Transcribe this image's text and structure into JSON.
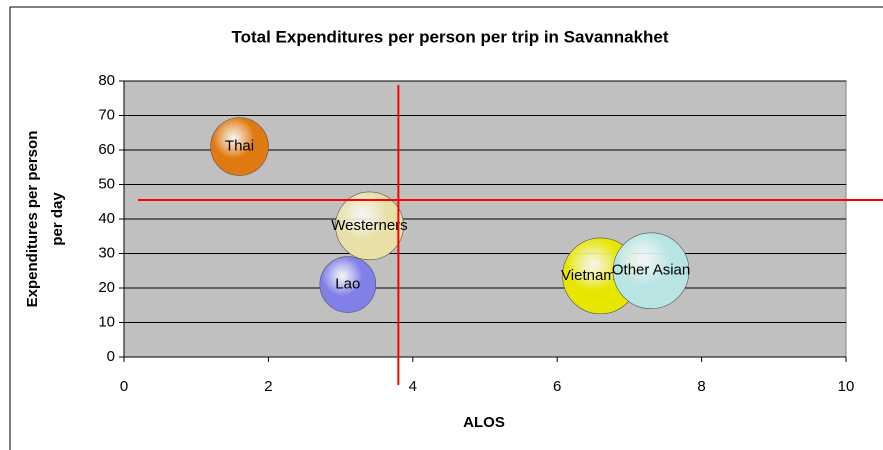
{
  "chart_data": {
    "type": "bubble",
    "title": "Total Expenditures per person per trip in Savannakhet",
    "xlabel": "ALOS",
    "ylabel": [
      "Expenditures per person",
      "per day"
    ],
    "xlim": [
      0,
      10
    ],
    "xticks": [
      0,
      2,
      4,
      6,
      8,
      10
    ],
    "ylim": [
      0,
      80
    ],
    "yticks": [
      0,
      10,
      20,
      30,
      40,
      50,
      60,
      70,
      80
    ],
    "grid": true,
    "series": [
      {
        "name": "Thai",
        "color": "#e07a10",
        "x": [
          1.6
        ],
        "values": [
          61
        ],
        "sizes": [
          93
        ]
      },
      {
        "name": "Westerners",
        "color": "#e8e0a8",
        "x": [
          3.4
        ],
        "values": [
          38
        ],
        "sizes": [
          128
        ]
      },
      {
        "name": "Lao",
        "color": "#8080e8",
        "x": [
          3.1
        ],
        "values": [
          21
        ],
        "sizes": [
          87
        ]
      },
      {
        "name": "Vietnamese",
        "color": "#e6e600",
        "x": [
          6.6
        ],
        "values": [
          23.5
        ],
        "sizes": [
          160
        ]
      },
      {
        "name": "Other Asian",
        "color": "#b8e4e4",
        "x": [
          7.3
        ],
        "values": [
          25
        ],
        "sizes": [
          160
        ]
      }
    ],
    "reference_x": 3.8,
    "reference_y": 45.5,
    "reference_color": "#ff0000"
  }
}
